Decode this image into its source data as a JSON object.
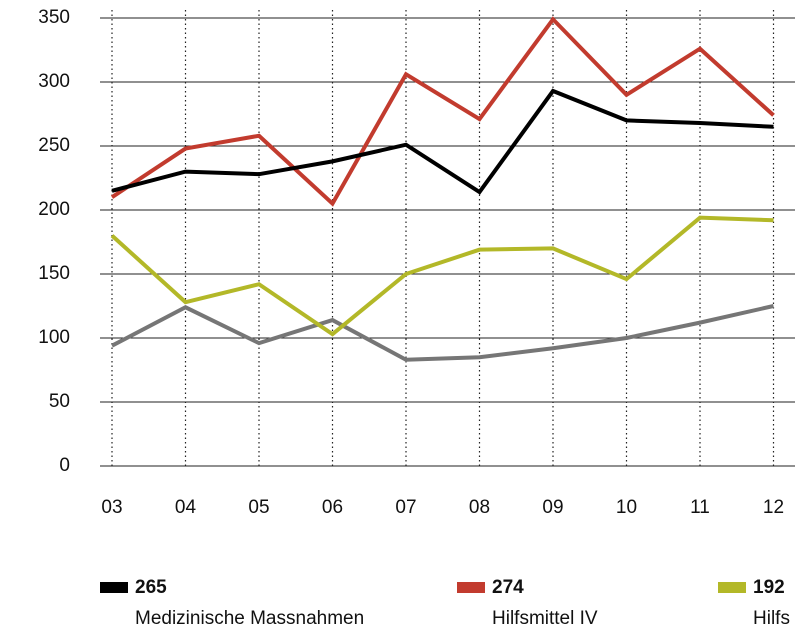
{
  "chart_data": {
    "type": "line",
    "categories": [
      "03",
      "04",
      "05",
      "06",
      "07",
      "08",
      "09",
      "10",
      "11",
      "12"
    ],
    "series": [
      {
        "name": "Medizinische Massnahmen",
        "color": "#000000",
        "values": [
          215,
          230,
          228,
          238,
          251,
          214,
          293,
          270,
          268,
          265
        ]
      },
      {
        "name": "Hilfsmittel IV",
        "color": "#c23b2e",
        "values": [
          210,
          248,
          258,
          205,
          306,
          271,
          349,
          290,
          326,
          274
        ]
      },
      {
        "name": "Hilfs",
        "color": "#b3b828",
        "values": [
          180,
          128,
          142,
          103,
          150,
          169,
          170,
          146,
          194,
          192
        ]
      },
      {
        "color": "#767676",
        "values": [
          94,
          124,
          96,
          114,
          83,
          85,
          92,
          100,
          112,
          125
        ]
      }
    ],
    "ylim": [
      0,
      350
    ],
    "yticks": [
      0,
      50,
      100,
      150,
      200,
      250,
      300,
      350
    ],
    "grid": true
  }
}
